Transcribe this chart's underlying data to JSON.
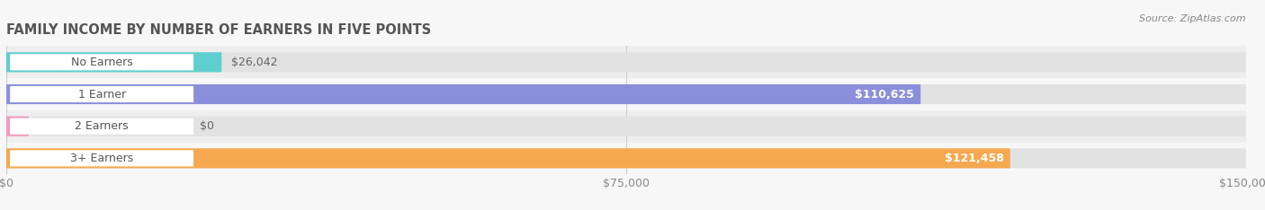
{
  "title": "FAMILY INCOME BY NUMBER OF EARNERS IN FIVE POINTS",
  "source": "Source: ZipAtlas.com",
  "categories": [
    "No Earners",
    "1 Earner",
    "2 Earners",
    "3+ Earners"
  ],
  "values": [
    26042,
    110625,
    0,
    121458
  ],
  "bar_colors": [
    "#5ecece",
    "#8b8fdb",
    "#f49bbf",
    "#f5a84d"
  ],
  "xlim": [
    0,
    150000
  ],
  "xticks": [
    0,
    75000,
    150000
  ],
  "xtick_labels": [
    "$0",
    "$75,000",
    "$150,000"
  ],
  "background_color": "#f7f7f7",
  "row_bg_even": "#eeeeee",
  "row_bg_odd": "#f7f7f7",
  "bar_bg_color": "#e2e2e2",
  "title_fontsize": 10.5,
  "tick_fontsize": 9,
  "value_labels": [
    "$26,042",
    "$110,625",
    "$0",
    "$121,458"
  ],
  "value_label_inside": [
    false,
    true,
    false,
    true
  ],
  "label_pill_color": "white",
  "label_text_color": "#555555",
  "grid_color": "#cccccc"
}
